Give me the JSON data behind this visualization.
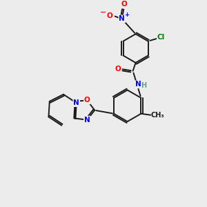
{
  "background_color": "#ececec",
  "bond_color": "#1a1a1a",
  "atom_colors": {
    "N": "#0000ff",
    "O": "#ff0000",
    "Cl": "#008000",
    "H": "#5f9ea0",
    "C": "#1a1a1a"
  },
  "lw": 1.4
}
